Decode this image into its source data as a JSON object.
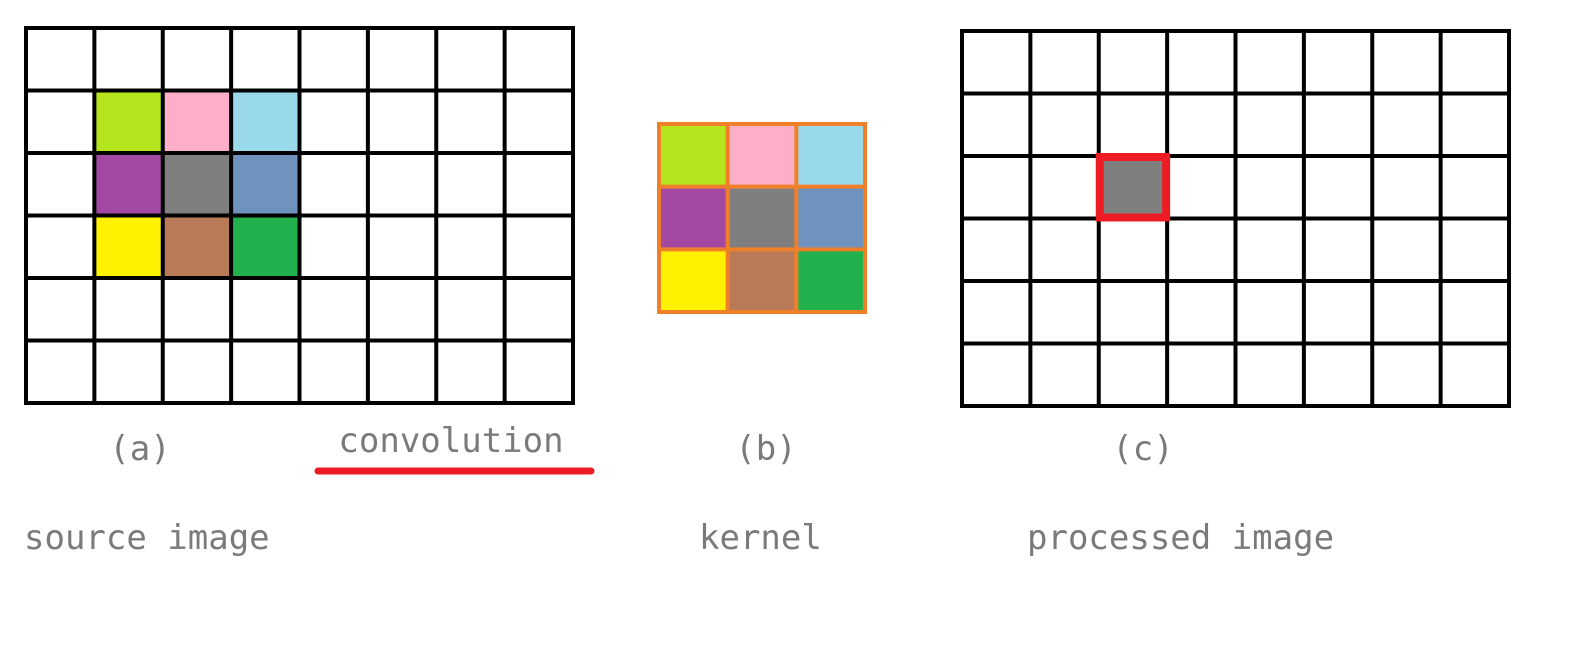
{
  "diagram": {
    "source": {
      "tag": "(a)",
      "caption": "source image",
      "rows": 6,
      "cols": 8,
      "filled_cells": [
        {
          "row": 1,
          "col": 1,
          "color": "#b5e61d"
        },
        {
          "row": 1,
          "col": 2,
          "color": "#ffaec9"
        },
        {
          "row": 1,
          "col": 3,
          "color": "#99d9ea"
        },
        {
          "row": 2,
          "col": 1,
          "color": "#a349a4"
        },
        {
          "row": 2,
          "col": 2,
          "color": "#7f7f7f"
        },
        {
          "row": 2,
          "col": 3,
          "color": "#7092be"
        },
        {
          "row": 3,
          "col": 1,
          "color": "#fff200"
        },
        {
          "row": 3,
          "col": 2,
          "color": "#b97a57"
        },
        {
          "row": 3,
          "col": 3,
          "color": "#22b14c"
        }
      ]
    },
    "operation": {
      "label": "convolution",
      "underline_color": "#ed1c24"
    },
    "kernel": {
      "tag": "(b)",
      "caption": "kernel",
      "rows": 3,
      "cols": 3,
      "border_color": "#f07f2a",
      "cells": [
        "#b5e61d",
        "#ffaec9",
        "#99d9ea",
        "#a349a4",
        "#7f7f7f",
        "#7092be",
        "#fff200",
        "#b97a57",
        "#22b14c"
      ]
    },
    "processed": {
      "tag": "(c)",
      "caption": "processed image",
      "rows": 6,
      "cols": 8,
      "highlight": {
        "row": 2,
        "col": 2,
        "fill": "#7f7f7f",
        "border_color": "#ed1c24"
      }
    }
  }
}
